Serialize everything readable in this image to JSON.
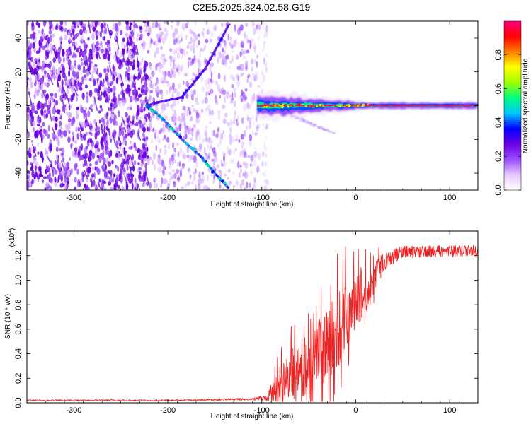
{
  "title": "C2E5.2025.324.02.58.G19",
  "colors": {
    "snr_line": "#ee2222",
    "colormap": [
      "#ffffff",
      "#e6c8ff",
      "#9a4cff",
      "#6a00e0",
      "#0000ff",
      "#00c8ff",
      "#00ff80",
      "#a0ff00",
      "#ffff00",
      "#ff8000",
      "#ff0000",
      "#ff0080"
    ]
  },
  "chart_data": [
    {
      "type": "heatmap",
      "xlabel": "Height of straight line (km)",
      "ylabel": "Frequency (Hz)",
      "xlim": [
        -350,
        130
      ],
      "ylim": [
        -50,
        50
      ],
      "xticks": [
        -300,
        -200,
        -100,
        0,
        100
      ],
      "yticks": [
        -40,
        -20,
        0,
        20,
        40
      ],
      "colorbar": {
        "label": "Normalized spectral amplitude",
        "range": [
          0,
          1
        ],
        "ticks": [
          0.0,
          0.2,
          0.4,
          0.6,
          0.8
        ]
      },
      "features": {
        "noise_region_x": [
          -350,
          -100
        ],
        "dense_noise_x": [
          -350,
          -220
        ],
        "signal_track": [
          {
            "x": -135,
            "y": 48
          },
          {
            "x": -160,
            "y": 22
          },
          {
            "x": -185,
            "y": 5
          },
          {
            "x": -210,
            "y": 2
          },
          {
            "x": -222,
            "y": 0
          },
          {
            "x": -205,
            "y": -8
          },
          {
            "x": -185,
            "y": -20
          },
          {
            "x": -165,
            "y": -30
          },
          {
            "x": -150,
            "y": -40
          },
          {
            "x": -135,
            "y": -49
          }
        ],
        "carrier_start_x": -105,
        "carrier_y": 0,
        "carrier_end_x": 130
      }
    },
    {
      "type": "line",
      "xlabel": "Height of straight line (km)",
      "ylabel": "SNR (10 * v/v)",
      "yscale_label": "(x10",
      "yscale_exponent": "4",
      "yscale_close": ")",
      "xlim": [
        -350,
        130
      ],
      "ylim": [
        0,
        1.4
      ],
      "xticks": [
        -300,
        -200,
        -100,
        0,
        100
      ],
      "yticks": [
        0.0,
        0.2,
        0.4,
        0.6,
        0.8,
        1.0,
        1.2
      ],
      "envelope": [
        {
          "x": -350,
          "mean": 0.02,
          "amp": 0.006
        },
        {
          "x": -200,
          "mean": 0.02,
          "amp": 0.006
        },
        {
          "x": -110,
          "mean": 0.03,
          "amp": 0.01
        },
        {
          "x": -95,
          "mean": 0.04,
          "amp": 0.03
        },
        {
          "x": -85,
          "mean": 0.12,
          "amp": 0.12
        },
        {
          "x": -70,
          "mean": 0.22,
          "amp": 0.2
        },
        {
          "x": -50,
          "mean": 0.3,
          "amp": 0.26
        },
        {
          "x": -30,
          "mean": 0.45,
          "amp": 0.32
        },
        {
          "x": -15,
          "mean": 0.65,
          "amp": 0.32
        },
        {
          "x": 0,
          "mean": 0.85,
          "amp": 0.25
        },
        {
          "x": 15,
          "mean": 0.95,
          "amp": 0.18
        },
        {
          "x": 30,
          "mean": 1.15,
          "amp": 0.07
        },
        {
          "x": 50,
          "mean": 1.23,
          "amp": 0.05
        },
        {
          "x": 130,
          "mean": 1.24,
          "amp": 0.05
        }
      ]
    }
  ]
}
